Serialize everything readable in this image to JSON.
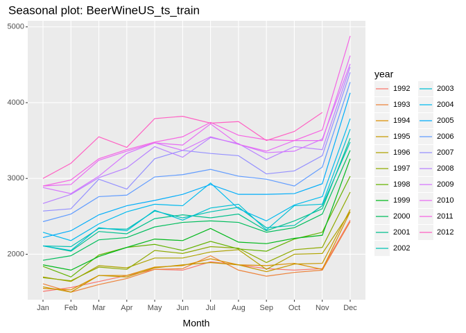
{
  "chart_data": {
    "type": "line",
    "title": "Seasonal plot: BeerWineUS_ts_train",
    "x_label": "Month",
    "legend_title": "year",
    "categories": [
      "Jan",
      "Feb",
      "Mar",
      "Apr",
      "May",
      "Jun",
      "Jul",
      "Aug",
      "Sep",
      "Oct",
      "Nov",
      "Dec"
    ],
    "ylim": [
      1400,
      5080
    ],
    "yticks": [
      2000,
      3000,
      4000,
      5000
    ],
    "grid": true,
    "series": [
      {
        "name": "1992",
        "color": "#F8766D",
        "values": [
          1510,
          1560,
          1640,
          1720,
          1800,
          1790,
          1900,
          1860,
          1810,
          1790,
          1810,
          2450
        ]
      },
      {
        "name": "1993",
        "color": "#EC8239",
        "values": [
          1610,
          1500,
          1600,
          1680,
          1800,
          1810,
          1980,
          1790,
          1710,
          1760,
          1790,
          2430
        ]
      },
      {
        "name": "1994",
        "color": "#DB8E00",
        "values": [
          1550,
          1530,
          1720,
          1720,
          1830,
          1850,
          1940,
          1860,
          1850,
          1880,
          1800,
          2560
        ]
      },
      {
        "name": "1995",
        "color": "#C79800",
        "values": [
          1570,
          1500,
          1720,
          1700,
          1820,
          1860,
          1890,
          1860,
          1770,
          1870,
          1880,
          2590
        ]
      },
      {
        "name": "1996",
        "color": "#AEA200",
        "values": [
          1700,
          1640,
          1850,
          1820,
          1950,
          1950,
          2030,
          2060,
          1800,
          2000,
          2010,
          2560
        ]
      },
      {
        "name": "1997",
        "color": "#8FAA00",
        "values": [
          1690,
          1650,
          1830,
          1800,
          2050,
          2010,
          2100,
          2080,
          1890,
          2060,
          2090,
          2820
        ]
      },
      {
        "name": "1998",
        "color": "#64B200",
        "values": [
          1840,
          1700,
          1990,
          2090,
          2130,
          2050,
          2170,
          2070,
          2040,
          2200,
          2290,
          3030
        ]
      },
      {
        "name": "1999",
        "color": "#00B81B",
        "values": [
          1860,
          1790,
          1970,
          2090,
          2200,
          2180,
          2340,
          2160,
          2140,
          2210,
          2250,
          3260
        ]
      },
      {
        "name": "2000",
        "color": "#00BD5C",
        "values": [
          1920,
          1980,
          2190,
          2220,
          2360,
          2420,
          2440,
          2420,
          2290,
          2350,
          2530,
          3370
        ]
      },
      {
        "name": "2001",
        "color": "#00C08C",
        "values": [
          2110,
          2040,
          2300,
          2270,
          2470,
          2520,
          2480,
          2530,
          2310,
          2440,
          2600,
          3530
        ]
      },
      {
        "name": "2002",
        "color": "#00C1B2",
        "values": [
          2110,
          2100,
          2340,
          2330,
          2570,
          2480,
          2560,
          2620,
          2350,
          2380,
          2640,
          3480
        ]
      },
      {
        "name": "2003",
        "color": "#00BFD4",
        "values": [
          2110,
          2050,
          2350,
          2310,
          2580,
          2450,
          2610,
          2660,
          2320,
          2640,
          2660,
          3650
        ]
      },
      {
        "name": "2004",
        "color": "#00BAEE",
        "values": [
          2290,
          2180,
          2400,
          2560,
          2660,
          2640,
          2940,
          2600,
          2440,
          2650,
          2760,
          3790
        ]
      },
      {
        "name": "2005",
        "color": "#00ADFA",
        "values": [
          2220,
          2310,
          2520,
          2640,
          2710,
          2790,
          2920,
          2790,
          2790,
          2800,
          2930,
          4130
        ]
      },
      {
        "name": "2006",
        "color": "#619CFF",
        "values": [
          2430,
          2530,
          2760,
          2780,
          3020,
          3050,
          3120,
          3030,
          2990,
          2900,
          3150,
          4270
        ]
      },
      {
        "name": "2007",
        "color": "#9590FF",
        "values": [
          2570,
          2600,
          2990,
          2860,
          3260,
          3370,
          3330,
          3300,
          3060,
          3100,
          3300,
          4400
        ]
      },
      {
        "name": "2008",
        "color": "#B983FF",
        "values": [
          2670,
          2790,
          3010,
          3140,
          3420,
          3280,
          3540,
          3460,
          3250,
          3420,
          3380,
          4470
        ]
      },
      {
        "name": "2009",
        "color": "#D575FE",
        "values": [
          2880,
          2800,
          3030,
          3330,
          3470,
          3370,
          3550,
          3450,
          3340,
          3360,
          3520,
          4510
        ]
      },
      {
        "name": "2010",
        "color": "#E76BF3",
        "values": [
          2900,
          2920,
          3240,
          3360,
          3470,
          3440,
          3720,
          3450,
          3360,
          3500,
          3500,
          4620
        ]
      },
      {
        "name": "2011",
        "color": "#F564E3",
        "values": [
          2900,
          2980,
          3260,
          3380,
          3480,
          3550,
          3740,
          3570,
          3510,
          3500,
          3640,
          4880
        ]
      },
      {
        "name": "2012",
        "color": "#FF61C3",
        "values": [
          3000,
          3200,
          3550,
          3410,
          3790,
          3820,
          3730,
          3750,
          3500,
          3620,
          3870,
          null
        ]
      }
    ]
  }
}
